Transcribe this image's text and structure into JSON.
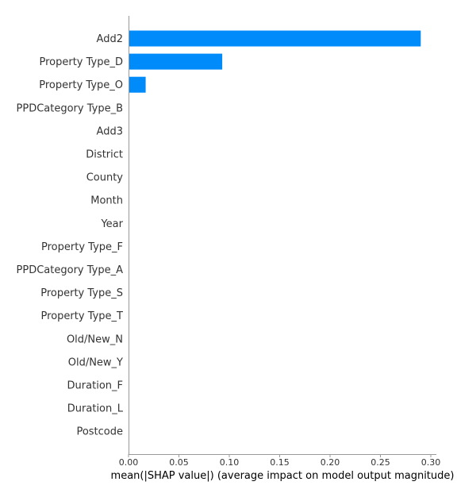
{
  "chart_data": {
    "type": "bar",
    "orientation": "horizontal",
    "categories": [
      "Add2",
      "Property Type_D",
      "Property Type_O",
      "PPDCategory Type_B",
      "Add3",
      "District",
      "County",
      "Month",
      "Year",
      "Property Type_F",
      "PPDCategory Type_A",
      "Property Type_S",
      "Property Type_T",
      "Old/New_N",
      "Old/New_Y",
      "Duration_F",
      "Duration_L",
      "Postcode"
    ],
    "values": [
      0.29,
      0.093,
      0.017,
      0,
      0,
      0,
      0,
      0,
      0,
      0,
      0,
      0,
      0,
      0,
      0,
      0,
      0,
      0
    ],
    "xlabel": "mean(|SHAP value|) (average impact on model output magnitude)",
    "ylabel": "",
    "xlim": [
      0,
      0.3
    ],
    "xticks": [
      "0.00",
      "0.05",
      "0.10",
      "0.15",
      "0.20",
      "0.25",
      "0.30"
    ],
    "grid": false,
    "bar_color": "#008bfb",
    "axis_color": "#999999"
  }
}
